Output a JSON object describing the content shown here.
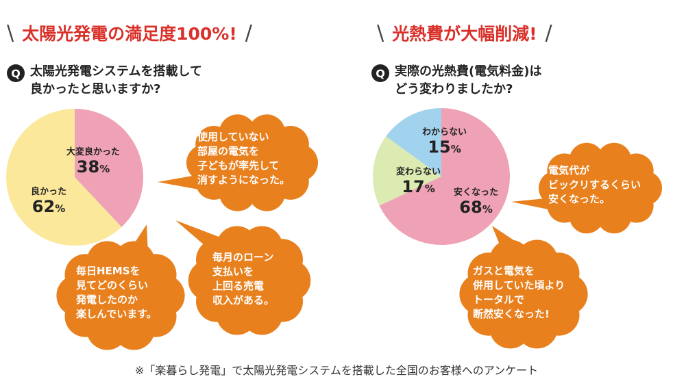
{
  "colors": {
    "heading": "#d9302a",
    "bubble": "#e8801e",
    "pink": "#efa2b5",
    "yellow": "#fbe89b",
    "green": "#dbebb1",
    "blue": "#a2d3ee"
  },
  "left": {
    "heading": "太陽光発電の満足度100%!",
    "q_badge": "Q",
    "question_lines": [
      "太陽光発電システムを搭載して",
      "良かったと思いますか?"
    ]
  },
  "right": {
    "heading": "光熱費が大幅削減!",
    "q_badge": "Q",
    "question_lines": [
      "実際の光熱費(電気料金)は",
      "どう変わりましたか?"
    ]
  },
  "chart_data": [
    {
      "type": "pie",
      "categories": [
        "大変良かった",
        "良かった"
      ],
      "values": [
        38,
        62
      ],
      "unit": "%",
      "colors": [
        "#efa2b5",
        "#fbe89b"
      ]
    },
    {
      "type": "pie",
      "categories": [
        "安くなった",
        "変わらない",
        "わからない"
      ],
      "values": [
        68,
        17,
        15
      ],
      "unit": "%",
      "colors": [
        "#efa2b5",
        "#dbebb1",
        "#a2d3ee"
      ]
    }
  ],
  "bubbles": [
    {
      "lines": [
        "使用していない",
        "部屋の電気を",
        "子どもが率先して",
        "消すようになった。"
      ]
    },
    {
      "lines": [
        "毎日HEMSを",
        "見てどのくらい",
        "発電したのか",
        "楽しんでいます。"
      ]
    },
    {
      "lines": [
        "毎月のローン",
        "支払いを",
        "上回る売電",
        "収入がある。"
      ]
    },
    {
      "lines": [
        "電気代が",
        "ビックリするくらい",
        "安くなった。"
      ]
    },
    {
      "lines": [
        "ガスと電気を",
        "併用していた頃より",
        "トータルで",
        "断然安くなった!"
      ]
    }
  ],
  "footnote": "※「楽暮らし発電」で太陽光発電システムを搭載した全国のお客様へのアンケート"
}
